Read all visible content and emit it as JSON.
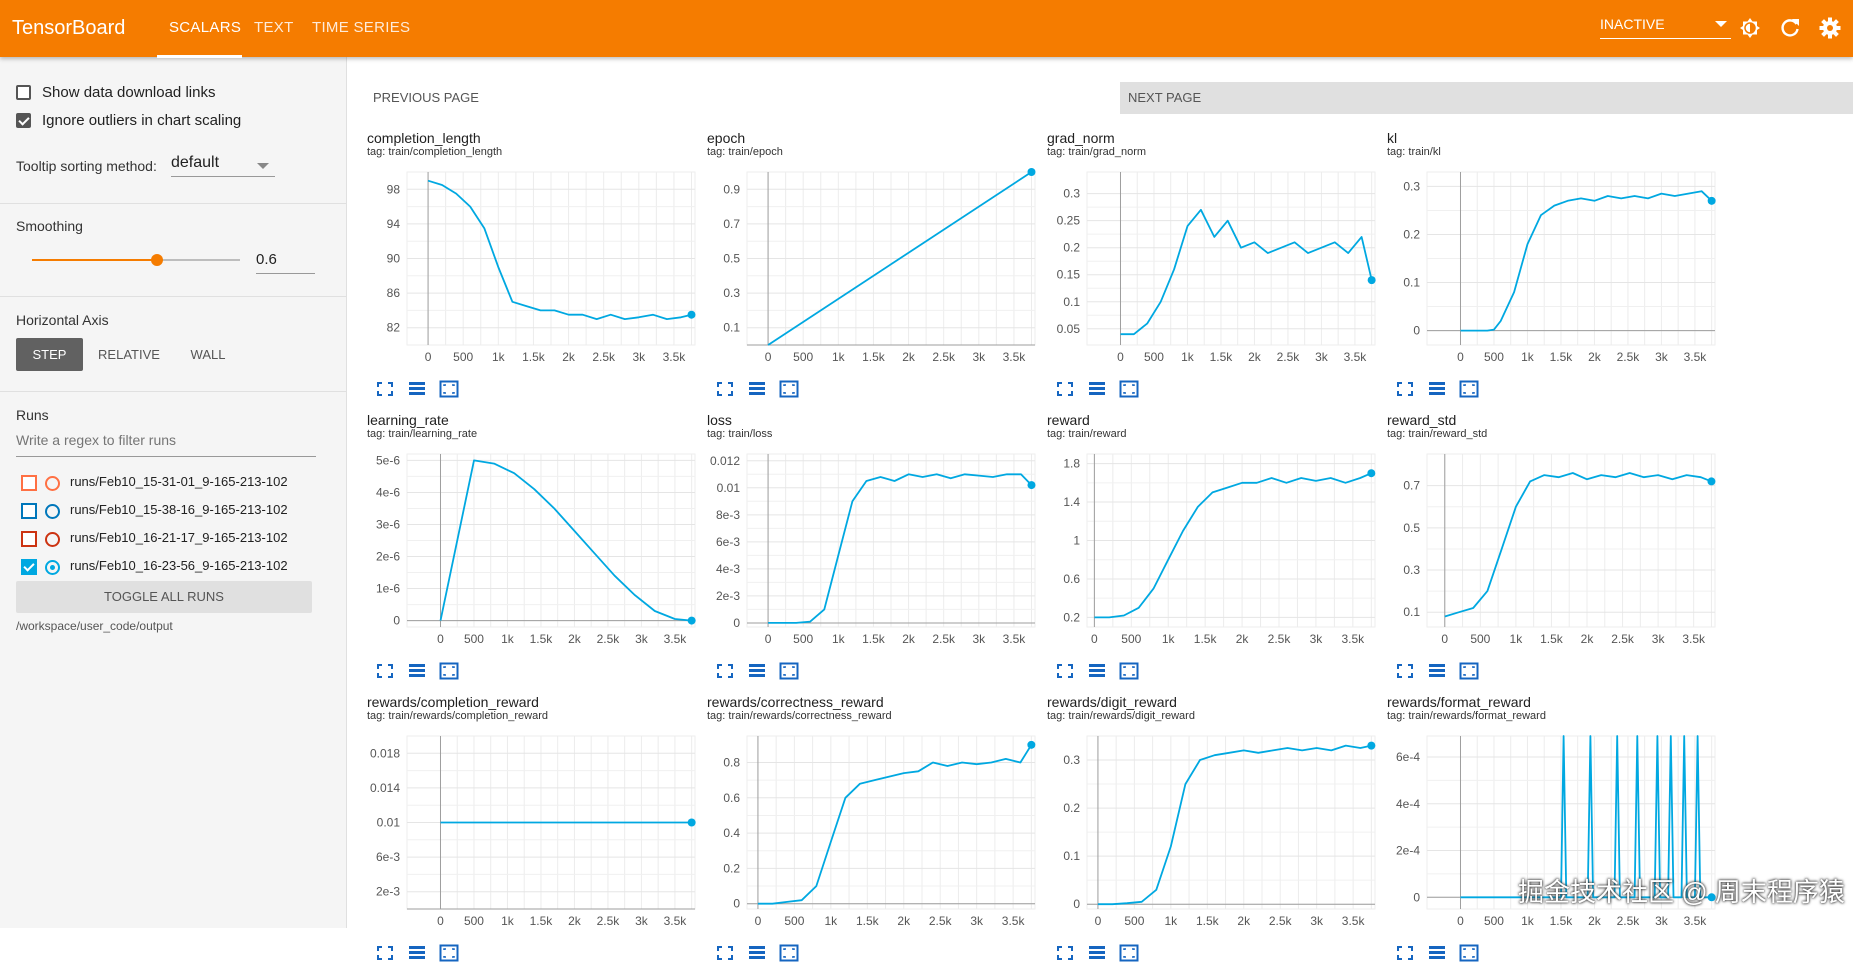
{
  "header": {
    "brand": "TensorBoard",
    "tabs": [
      "SCALARS",
      "TEXT",
      "TIME SERIES"
    ],
    "run_status": "INACTIVE",
    "accent": "#f57c00"
  },
  "sidebar": {
    "show_download_links": "Show data download links",
    "ignore_outliers": "Ignore outliers in chart scaling",
    "tooltip_label": "Tooltip sorting method:",
    "tooltip_value": "default",
    "smoothing_label": "Smoothing",
    "smoothing_value": "0.6",
    "smoothing_fraction": 0.6,
    "haxis_label": "Horizontal Axis",
    "haxis_options": [
      "STEP",
      "RELATIVE",
      "WALL"
    ],
    "runs_label": "Runs",
    "filter_placeholder": "Write a regex to filter runs",
    "runs": [
      {
        "name": "runs/Feb10_15-31-01_9-165-213-102",
        "color": "#ff7043",
        "checked": false
      },
      {
        "name": "runs/Feb10_15-38-16_9-165-213-102",
        "color": "#0077bb",
        "checked": false
      },
      {
        "name": "runs/Feb10_16-21-17_9-165-213-102",
        "color": "#cc3311",
        "checked": false
      },
      {
        "name": "runs/Feb10_16-23-56_9-165-213-102",
        "color": "#00a8e1",
        "checked": true
      }
    ],
    "toggle_all": "TOGGLE ALL RUNS",
    "logdir": "/workspace/user_code/output"
  },
  "pager": {
    "prev": "PREVIOUS PAGE",
    "next": "NEXT PAGE"
  },
  "watermark": "掘金技术社区 @ 周末程序猿",
  "chart_data": [
    {
      "type": "line",
      "title": "completion_length",
      "tag": "tag: train/completion_length",
      "xlim": [
        -300,
        3800
      ],
      "ylim": [
        80,
        100
      ],
      "yticks": [
        82,
        86,
        90,
        94,
        98
      ],
      "ytick_labels": [
        "82",
        "86",
        "90",
        "94",
        "98"
      ],
      "xticks": [
        0,
        500,
        1000,
        1500,
        2000,
        2500,
        3000,
        3500
      ],
      "xtick_labels": [
        "0",
        "500",
        "1k",
        "1.5k",
        "2k",
        "2.5k",
        "3k",
        "3.5k"
      ],
      "x": [
        0,
        200,
        400,
        600,
        800,
        1000,
        1200,
        1400,
        1600,
        1800,
        2000,
        2200,
        2400,
        2600,
        2800,
        3000,
        3200,
        3400,
        3600,
        3750
      ],
      "y": [
        99,
        98.5,
        97.5,
        96,
        93.5,
        89,
        85,
        84.5,
        84,
        84,
        83.5,
        83.5,
        83,
        83.5,
        83,
        83.2,
        83.5,
        83,
        83.2,
        83.5
      ]
    },
    {
      "type": "line",
      "title": "epoch",
      "tag": "tag: train/epoch",
      "xlim": [
        -300,
        3800
      ],
      "ylim": [
        0,
        1
      ],
      "yticks": [
        0.1,
        0.3,
        0.5,
        0.7,
        0.9
      ],
      "ytick_labels": [
        "0.1",
        "0.3",
        "0.5",
        "0.7",
        "0.9"
      ],
      "xticks": [
        0,
        500,
        1000,
        1500,
        2000,
        2500,
        3000,
        3500
      ],
      "xtick_labels": [
        "0",
        "500",
        "1k",
        "1.5k",
        "2k",
        "2.5k",
        "3k",
        "3.5k"
      ],
      "x": [
        0,
        3750
      ],
      "y": [
        0,
        1
      ]
    },
    {
      "type": "line",
      "title": "grad_norm",
      "tag": "tag: train/grad_norm",
      "xlim": [
        -500,
        3800
      ],
      "ylim": [
        0.02,
        0.34
      ],
      "yticks": [
        0.05,
        0.1,
        0.15,
        0.2,
        0.25,
        0.3
      ],
      "ytick_labels": [
        "0.05",
        "0.1",
        "0.15",
        "0.2",
        "0.25",
        "0.3"
      ],
      "xticks": [
        0,
        500,
        1000,
        1500,
        2000,
        2500,
        3000,
        3500
      ],
      "xtick_labels": [
        "0",
        "500",
        "1k",
        "1.5k",
        "2k",
        "2.5k",
        "3k",
        "3.5k"
      ],
      "x": [
        0,
        200,
        400,
        600,
        800,
        1000,
        1200,
        1400,
        1600,
        1800,
        2000,
        2200,
        2400,
        2600,
        2800,
        3000,
        3200,
        3400,
        3600,
        3750
      ],
      "y": [
        0.04,
        0.04,
        0.06,
        0.1,
        0.16,
        0.24,
        0.27,
        0.22,
        0.25,
        0.2,
        0.21,
        0.19,
        0.2,
        0.21,
        0.19,
        0.2,
        0.21,
        0.19,
        0.22,
        0.14
      ]
    },
    {
      "type": "line",
      "title": "kl",
      "tag": "tag: train/kl",
      "xlim": [
        -500,
        3800
      ],
      "ylim": [
        -0.03,
        0.33
      ],
      "yticks": [
        0,
        0.1,
        0.2,
        0.3
      ],
      "ytick_labels": [
        "0",
        "0.1",
        "0.2",
        "0.3"
      ],
      "xticks": [
        0,
        500,
        1000,
        1500,
        2000,
        2500,
        3000,
        3500
      ],
      "xtick_labels": [
        "0",
        "500",
        "1k",
        "1.5k",
        "2k",
        "2.5k",
        "3k",
        "3.5k"
      ],
      "x": [
        0,
        200,
        400,
        500,
        600,
        800,
        1000,
        1200,
        1400,
        1600,
        1800,
        2000,
        2200,
        2400,
        2600,
        2800,
        3000,
        3200,
        3400,
        3600,
        3750
      ],
      "y": [
        0,
        0,
        0,
        0.002,
        0.02,
        0.08,
        0.18,
        0.24,
        0.26,
        0.27,
        0.275,
        0.27,
        0.28,
        0.275,
        0.28,
        0.275,
        0.285,
        0.28,
        0.285,
        0.29,
        0.27
      ]
    },
    {
      "type": "line",
      "title": "learning_rate",
      "tag": "tag: train/learning_rate",
      "xlim": [
        -500,
        3800
      ],
      "ylim": [
        -2e-07,
        5.2e-06
      ],
      "yticks": [
        0,
        1e-06,
        2e-06,
        3e-06,
        4e-06,
        5e-06
      ],
      "ytick_labels": [
        "0",
        "1e-6",
        "2e-6",
        "3e-6",
        "4e-6",
        "5e-6"
      ],
      "xticks": [
        0,
        500,
        1000,
        1500,
        2000,
        2500,
        3000,
        3500
      ],
      "xtick_labels": [
        "0",
        "500",
        "1k",
        "1.5k",
        "2k",
        "2.5k",
        "3k",
        "3.5k"
      ],
      "x": [
        0,
        500,
        800,
        1100,
        1400,
        1700,
        2000,
        2300,
        2600,
        2900,
        3200,
        3500,
        3750
      ],
      "y": [
        0,
        5e-06,
        4.9e-06,
        4.6e-06,
        4.1e-06,
        3.5e-06,
        2.8e-06,
        2.1e-06,
        1.4e-06,
        8e-07,
        3e-07,
        5e-08,
        0
      ]
    },
    {
      "type": "line",
      "title": "loss",
      "tag": "tag: train/loss",
      "xlim": [
        -300,
        3800
      ],
      "ylim": [
        -0.0003,
        0.0125
      ],
      "yticks": [
        0,
        0.002,
        0.004,
        0.006,
        0.008,
        0.01,
        0.012
      ],
      "ytick_labels": [
        "0",
        "2e-3",
        "4e-3",
        "6e-3",
        "8e-3",
        "0.01",
        "0.012"
      ],
      "xticks": [
        0,
        500,
        1000,
        1500,
        2000,
        2500,
        3000,
        3500
      ],
      "xtick_labels": [
        "0",
        "500",
        "1k",
        "1.5k",
        "2k",
        "2.5k",
        "3k",
        "3.5k"
      ],
      "x": [
        0,
        200,
        400,
        600,
        800,
        1000,
        1200,
        1400,
        1600,
        1800,
        2000,
        2200,
        2400,
        2600,
        2800,
        3000,
        3200,
        3400,
        3600,
        3750
      ],
      "y": [
        0,
        0,
        0,
        0.0001,
        0.001,
        0.005,
        0.009,
        0.0105,
        0.0108,
        0.0105,
        0.011,
        0.0108,
        0.011,
        0.0107,
        0.011,
        0.0109,
        0.0108,
        0.011,
        0.011,
        0.0102
      ]
    },
    {
      "type": "line",
      "title": "reward",
      "tag": "tag: train/reward",
      "xlim": [
        -100,
        3800
      ],
      "ylim": [
        0.1,
        1.9
      ],
      "yticks": [
        0.2,
        0.6,
        1,
        1.4,
        1.8
      ],
      "ytick_labels": [
        "0.2",
        "0.6",
        "1",
        "1.4",
        "1.8"
      ],
      "xticks": [
        0,
        500,
        1000,
        1500,
        2000,
        2500,
        3000,
        3500
      ],
      "xtick_labels": [
        "0",
        "500",
        "1k",
        "1.5k",
        "2k",
        "2.5k",
        "3k",
        "3.5k"
      ],
      "x": [
        0,
        200,
        400,
        600,
        800,
        1000,
        1200,
        1400,
        1600,
        1800,
        2000,
        2200,
        2400,
        2600,
        2800,
        3000,
        3200,
        3400,
        3600,
        3750
      ],
      "y": [
        0.2,
        0.2,
        0.22,
        0.3,
        0.5,
        0.8,
        1.1,
        1.35,
        1.5,
        1.55,
        1.6,
        1.6,
        1.65,
        1.6,
        1.65,
        1.62,
        1.65,
        1.6,
        1.65,
        1.7
      ]
    },
    {
      "type": "line",
      "title": "reward_std",
      "tag": "tag: train/reward_std",
      "xlim": [
        -250,
        3800
      ],
      "ylim": [
        0.03,
        0.85
      ],
      "yticks": [
        0.1,
        0.3,
        0.5,
        0.7
      ],
      "ytick_labels": [
        "0.1",
        "0.3",
        "0.5",
        "0.7"
      ],
      "xticks": [
        0,
        500,
        1000,
        1500,
        2000,
        2500,
        3000,
        3500
      ],
      "xtick_labels": [
        "0",
        "500",
        "1k",
        "1.5k",
        "2k",
        "2.5k",
        "3k",
        "3.5k"
      ],
      "x": [
        0,
        200,
        400,
        600,
        800,
        1000,
        1200,
        1400,
        1600,
        1800,
        2000,
        2200,
        2400,
        2600,
        2800,
        3000,
        3200,
        3400,
        3600,
        3750
      ],
      "y": [
        0.08,
        0.1,
        0.12,
        0.2,
        0.4,
        0.6,
        0.72,
        0.75,
        0.74,
        0.76,
        0.73,
        0.75,
        0.74,
        0.76,
        0.74,
        0.75,
        0.73,
        0.75,
        0.74,
        0.72
      ]
    },
    {
      "type": "line",
      "title": "rewards/completion_reward",
      "tag": "tag: train/rewards/completion_reward",
      "xlim": [
        -500,
        3800
      ],
      "ylim": [
        0,
        0.02
      ],
      "yticks": [
        0.002,
        0.006,
        0.01,
        0.014,
        0.018
      ],
      "ytick_labels": [
        "2e-3",
        "6e-3",
        "0.01",
        "0.014",
        "0.018"
      ],
      "xticks": [
        0,
        500,
        1000,
        1500,
        2000,
        2500,
        3000,
        3500
      ],
      "xtick_labels": [
        "0",
        "500",
        "1k",
        "1.5k",
        "2k",
        "2.5k",
        "3k",
        "3.5k"
      ],
      "x": [
        0,
        3750
      ],
      "y": [
        0.01,
        0.01
      ]
    },
    {
      "type": "line",
      "title": "rewards/correctness_reward",
      "tag": "tag: train/rewards/correctness_reward",
      "xlim": [
        -150,
        3800
      ],
      "ylim": [
        -0.03,
        0.95
      ],
      "yticks": [
        0,
        0.2,
        0.4,
        0.6,
        0.8
      ],
      "ytick_labels": [
        "0",
        "0.2",
        "0.4",
        "0.6",
        "0.8"
      ],
      "xticks": [
        0,
        500,
        1000,
        1500,
        2000,
        2500,
        3000,
        3500
      ],
      "xtick_labels": [
        "0",
        "500",
        "1k",
        "1.5k",
        "2k",
        "2.5k",
        "3k",
        "3.5k"
      ],
      "x": [
        0,
        200,
        400,
        600,
        800,
        1000,
        1200,
        1400,
        1600,
        1800,
        2000,
        2200,
        2400,
        2600,
        2800,
        3000,
        3200,
        3400,
        3600,
        3750
      ],
      "y": [
        0,
        0,
        0.01,
        0.02,
        0.1,
        0.35,
        0.6,
        0.68,
        0.7,
        0.72,
        0.74,
        0.75,
        0.8,
        0.78,
        0.8,
        0.79,
        0.8,
        0.82,
        0.8,
        0.9
      ]
    },
    {
      "type": "line",
      "title": "rewards/digit_reward",
      "tag": "tag: train/rewards/digit_reward",
      "xlim": [
        -150,
        3800
      ],
      "ylim": [
        -0.01,
        0.35
      ],
      "yticks": [
        0,
        0.1,
        0.2,
        0.3
      ],
      "ytick_labels": [
        "0",
        "0.1",
        "0.2",
        "0.3"
      ],
      "xticks": [
        0,
        500,
        1000,
        1500,
        2000,
        2500,
        3000,
        3500
      ],
      "xtick_labels": [
        "0",
        "500",
        "1k",
        "1.5k",
        "2k",
        "2.5k",
        "3k",
        "3.5k"
      ],
      "x": [
        0,
        200,
        400,
        600,
        800,
        1000,
        1200,
        1400,
        1600,
        1800,
        2000,
        2200,
        2400,
        2600,
        2800,
        3000,
        3200,
        3400,
        3600,
        3750
      ],
      "y": [
        0,
        0,
        0.002,
        0.005,
        0.03,
        0.12,
        0.25,
        0.3,
        0.31,
        0.315,
        0.32,
        0.315,
        0.32,
        0.325,
        0.32,
        0.325,
        0.32,
        0.33,
        0.325,
        0.33
      ]
    },
    {
      "type": "line",
      "title": "rewards/format_reward",
      "tag": "tag: train/rewards/format_reward",
      "xlim": [
        -500,
        3800
      ],
      "ylim": [
        -5e-05,
        0.00069
      ],
      "yticks": [
        0,
        0.0002,
        0.0004,
        0.0006
      ],
      "ytick_labels": [
        "0",
        "2e-4",
        "4e-4",
        "6e-4"
      ],
      "xticks": [
        0,
        500,
        1000,
        1500,
        2000,
        2500,
        3000,
        3500
      ],
      "xtick_labels": [
        "0",
        "500",
        "1k",
        "1.5k",
        "2k",
        "2.5k",
        "3k",
        "3.5k"
      ],
      "x": [
        0,
        1500,
        1540,
        1580,
        1900,
        1940,
        1980,
        2300,
        2340,
        2380,
        2600,
        2640,
        2680,
        2900,
        2940,
        2980,
        3100,
        3140,
        3180,
        3300,
        3340,
        3380,
        3500,
        3540,
        3580,
        3750
      ],
      "y": [
        0,
        0,
        0.00069,
        0,
        0,
        0.00069,
        0,
        0,
        0.00069,
        0,
        0,
        0.00069,
        0,
        0,
        0.00069,
        0,
        0,
        0.00069,
        0,
        0,
        0.00069,
        0,
        0,
        0.00069,
        0,
        0
      ]
    }
  ]
}
